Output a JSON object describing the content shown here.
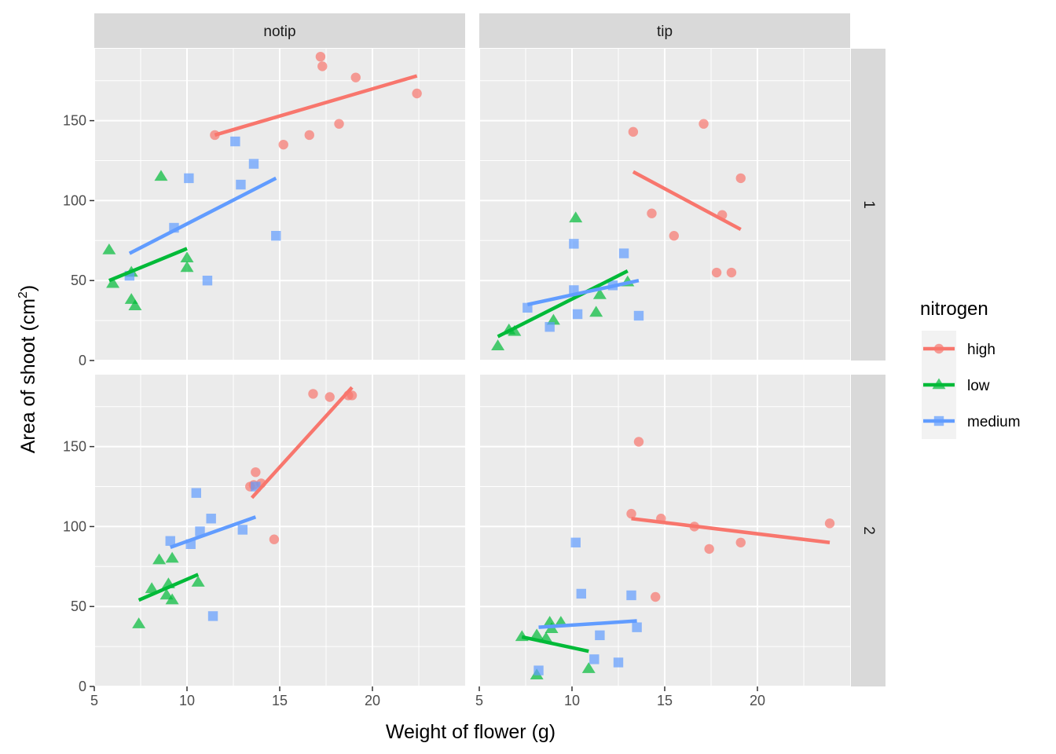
{
  "chart_data": {
    "type": "scatter",
    "facet_cols": [
      "notip",
      "tip"
    ],
    "facet_rows": [
      "1",
      "2"
    ],
    "xlabel": "Weight of flower (g)",
    "ylabel_main": "Area of shoot (cm",
    "ylabel_sup": "2",
    "ylabel_close": ")",
    "xlim": [
      5,
      25
    ],
    "ylim": [
      0,
      195
    ],
    "x_ticks": [
      5,
      10,
      15,
      20
    ],
    "y_ticks": [
      0,
      50,
      100,
      150
    ],
    "grid": true,
    "legend": {
      "title": "nitrogen",
      "position": "right",
      "items": [
        {
          "label": "high",
          "color": "#F8766D",
          "shape": "circle"
        },
        {
          "label": "low",
          "color": "#00BA38",
          "shape": "triangle"
        },
        {
          "label": "medium",
          "color": "#619CFF",
          "shape": "square"
        }
      ]
    },
    "panels": [
      {
        "col": "notip",
        "row": "1",
        "series": [
          {
            "name": "high",
            "points": [
              [
                11.5,
                141
              ],
              [
                15.2,
                135
              ],
              [
                16.6,
                141
              ],
              [
                17.2,
                190
              ],
              [
                17.3,
                184
              ],
              [
                18.2,
                148
              ],
              [
                19.1,
                177
              ],
              [
                22.4,
                167
              ]
            ],
            "fit": [
              [
                11.5,
                141
              ],
              [
                22.4,
                178
              ]
            ]
          },
          {
            "name": "low",
            "points": [
              [
                5.8,
                69
              ],
              [
                6.0,
                48
              ],
              [
                7.0,
                55
              ],
              [
                7.0,
                38
              ],
              [
                7.2,
                34
              ],
              [
                8.6,
                115
              ],
              [
                10.0,
                58
              ],
              [
                10.0,
                64
              ]
            ],
            "fit": [
              [
                5.8,
                50
              ],
              [
                10.0,
                70
              ]
            ]
          },
          {
            "name": "medium",
            "points": [
              [
                6.9,
                53
              ],
              [
                9.3,
                83
              ],
              [
                10.1,
                114
              ],
              [
                11.1,
                50
              ],
              [
                12.6,
                137
              ],
              [
                12.9,
                110
              ],
              [
                13.6,
                123
              ],
              [
                14.8,
                78
              ]
            ],
            "fit": [
              [
                6.9,
                67
              ],
              [
                14.8,
                114
              ]
            ]
          }
        ]
      },
      {
        "col": "tip",
        "row": "1",
        "series": [
          {
            "name": "high",
            "points": [
              [
                13.3,
                143
              ],
              [
                14.3,
                92
              ],
              [
                15.5,
                78
              ],
              [
                17.1,
                148
              ],
              [
                17.8,
                55
              ],
              [
                18.1,
                91
              ],
              [
                18.6,
                55
              ],
              [
                19.1,
                114
              ]
            ],
            "fit": [
              [
                13.3,
                118
              ],
              [
                19.1,
                82
              ]
            ]
          },
          {
            "name": "low",
            "points": [
              [
                6.0,
                9
              ],
              [
                6.6,
                19
              ],
              [
                6.9,
                18
              ],
              [
                9.0,
                25
              ],
              [
                10.2,
                89
              ],
              [
                11.3,
                30
              ],
              [
                11.5,
                41
              ],
              [
                13.0,
                49
              ]
            ],
            "fit": [
              [
                6.0,
                15
              ],
              [
                13.0,
                56
              ]
            ]
          },
          {
            "name": "medium",
            "points": [
              [
                7.6,
                33
              ],
              [
                8.8,
                21
              ],
              [
                10.1,
                73
              ],
              [
                10.1,
                44
              ],
              [
                10.3,
                29
              ],
              [
                12.2,
                47
              ],
              [
                12.8,
                67
              ],
              [
                13.6,
                28
              ]
            ],
            "fit": [
              [
                7.6,
                35
              ],
              [
                13.6,
                50
              ]
            ]
          }
        ]
      },
      {
        "col": "notip",
        "row": "2",
        "series": [
          {
            "name": "high",
            "points": [
              [
                13.4,
                125
              ],
              [
                13.6,
                126
              ],
              [
                13.7,
                134
              ],
              [
                14.0,
                127
              ],
              [
                14.7,
                92
              ],
              [
                16.8,
                183
              ],
              [
                17.7,
                181
              ],
              [
                18.7,
                182
              ],
              [
                18.9,
                182
              ]
            ],
            "fit": [
              [
                13.5,
                118
              ],
              [
                18.9,
                187
              ]
            ]
          },
          {
            "name": "low",
            "points": [
              [
                7.4,
                39
              ],
              [
                8.1,
                61
              ],
              [
                8.5,
                79
              ],
              [
                8.9,
                57
              ],
              [
                9.0,
                64
              ],
              [
                9.2,
                54
              ],
              [
                9.2,
                80
              ],
              [
                10.6,
                65
              ]
            ],
            "fit": [
              [
                7.4,
                54
              ],
              [
                10.6,
                70
              ]
            ]
          },
          {
            "name": "medium",
            "points": [
              [
                9.1,
                91
              ],
              [
                10.2,
                89
              ],
              [
                10.5,
                121
              ],
              [
                10.7,
                97
              ],
              [
                11.3,
                105
              ],
              [
                11.4,
                44
              ],
              [
                13.0,
                98
              ],
              [
                13.7,
                125
              ]
            ],
            "fit": [
              [
                9.1,
                87
              ],
              [
                13.7,
                106
              ]
            ]
          }
        ]
      },
      {
        "col": "tip",
        "row": "2",
        "series": [
          {
            "name": "high",
            "points": [
              [
                13.2,
                108
              ],
              [
                13.6,
                153
              ],
              [
                14.5,
                56
              ],
              [
                14.8,
                105
              ],
              [
                16.6,
                100
              ],
              [
                17.4,
                86
              ],
              [
                19.1,
                90
              ],
              [
                23.9,
                102
              ]
            ],
            "fit": [
              [
                13.2,
                105
              ],
              [
                23.9,
                90
              ]
            ]
          },
          {
            "name": "low",
            "points": [
              [
                7.3,
                31
              ],
              [
                8.1,
                32
              ],
              [
                8.1,
                7
              ],
              [
                8.6,
                30
              ],
              [
                8.8,
                40
              ],
              [
                8.9,
                36
              ],
              [
                9.4,
                40
              ],
              [
                10.9,
                11
              ]
            ],
            "fit": [
              [
                7.3,
                31
              ],
              [
                10.9,
                22
              ]
            ]
          },
          {
            "name": "medium",
            "points": [
              [
                8.2,
                10
              ],
              [
                10.2,
                90
              ],
              [
                10.5,
                58
              ],
              [
                11.2,
                17
              ],
              [
                11.5,
                32
              ],
              [
                12.5,
                15
              ],
              [
                13.2,
                57
              ],
              [
                13.5,
                37
              ]
            ],
            "fit": [
              [
                8.2,
                37
              ],
              [
                13.5,
                41
              ]
            ]
          }
        ]
      }
    ]
  }
}
